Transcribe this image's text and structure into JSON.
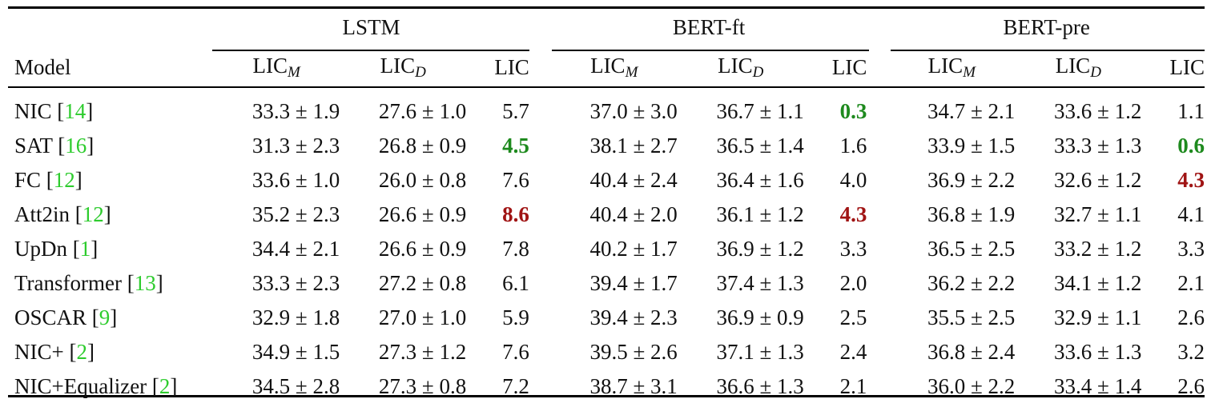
{
  "table": {
    "header": {
      "model_label": "Model",
      "groups": [
        "LSTM",
        "BERT-ft",
        "BERT-pre"
      ],
      "sub_m": "LIC",
      "sub_m_sub": "M",
      "sub_d": "LIC",
      "sub_d_sub": "D",
      "sub_lic": "LIC"
    },
    "rows": [
      {
        "model": "NIC [",
        "ref": "14",
        "close": "]",
        "lstm": [
          "33.3 ± 1.9",
          "27.6 ± 1.0",
          "5.7"
        ],
        "bertft": [
          "37.0 ± 3.0",
          "36.7 ± 1.1",
          "0.3"
        ],
        "bertpre": [
          "34.7 ± 2.1",
          "33.6 ± 1.2",
          "1.1"
        ]
      },
      {
        "model": "SAT [",
        "ref": "16",
        "close": "]",
        "lstm": [
          "31.3 ± 2.3",
          "26.8 ± 0.9",
          "4.5"
        ],
        "bertft": [
          "38.1 ± 2.7",
          "36.5 ± 1.4",
          "1.6"
        ],
        "bertpre": [
          "33.9 ± 1.5",
          "33.3 ± 1.3",
          "0.6"
        ]
      },
      {
        "model": "FC [",
        "ref": "12",
        "close": "]",
        "lstm": [
          "33.6 ± 1.0",
          "26.0 ± 0.8",
          "7.6"
        ],
        "bertft": [
          "40.4 ± 2.4",
          "36.4 ± 1.6",
          "4.0"
        ],
        "bertpre": [
          "36.9 ± 2.2",
          "32.6 ± 1.2",
          "4.3"
        ]
      },
      {
        "model": "Att2in [",
        "ref": "12",
        "close": "]",
        "lstm": [
          "35.2 ± 2.3",
          "26.6 ± 0.9",
          "8.6"
        ],
        "bertft": [
          "40.4 ± 2.0",
          "36.1 ± 1.2",
          "4.3"
        ],
        "bertpre": [
          "36.8 ± 1.9",
          "32.7 ± 1.1",
          "4.1"
        ]
      },
      {
        "model": "UpDn [",
        "ref": "1",
        "close": "]",
        "lstm": [
          "34.4 ± 2.1",
          "26.6 ± 0.9",
          "7.8"
        ],
        "bertft": [
          "40.2 ± 1.7",
          "36.9 ± 1.2",
          "3.3"
        ],
        "bertpre": [
          "36.5 ± 2.5",
          "33.2 ± 1.2",
          "3.3"
        ]
      },
      {
        "model": "Transformer [",
        "ref": "13",
        "close": "]",
        "lstm": [
          "33.3 ± 2.3",
          "27.2 ± 0.8",
          "6.1"
        ],
        "bertft": [
          "39.4 ± 1.7",
          "37.4 ± 1.3",
          "2.0"
        ],
        "bertpre": [
          "36.2 ± 2.2",
          "34.1 ± 1.2",
          "2.1"
        ]
      },
      {
        "model": "OSCAR [",
        "ref": "9",
        "close": "]",
        "lstm": [
          "32.9 ± 1.8",
          "27.0 ± 1.0",
          "5.9"
        ],
        "bertft": [
          "39.4 ± 2.3",
          "36.9 ± 0.9",
          "2.5"
        ],
        "bertpre": [
          "35.5 ± 2.5",
          "32.9 ± 1.1",
          "2.6"
        ]
      },
      {
        "model": "NIC+ [",
        "ref": "2",
        "close": "]",
        "lstm": [
          "34.9 ± 1.5",
          "27.3 ± 1.2",
          "7.6"
        ],
        "bertft": [
          "39.5 ± 2.6",
          "37.1 ± 1.3",
          "2.4"
        ],
        "bertpre": [
          "36.8 ± 2.4",
          "33.6 ± 1.3",
          "3.2"
        ]
      },
      {
        "model": "NIC+Equalizer [",
        "ref": "2",
        "close": "]",
        "lstm": [
          "34.5 ± 2.8",
          "27.3 ± 0.8",
          "7.2"
        ],
        "bertft": [
          "38.7 ± 3.1",
          "36.6 ± 1.3",
          "2.1"
        ],
        "bertpre": [
          "36.0 ± 2.2",
          "33.4 ± 1.4",
          "2.6"
        ]
      }
    ],
    "highlight_colors": {
      "best": "#1e8a1e",
      "worst": "#a01414",
      "ref": "#2ecc2e"
    }
  }
}
